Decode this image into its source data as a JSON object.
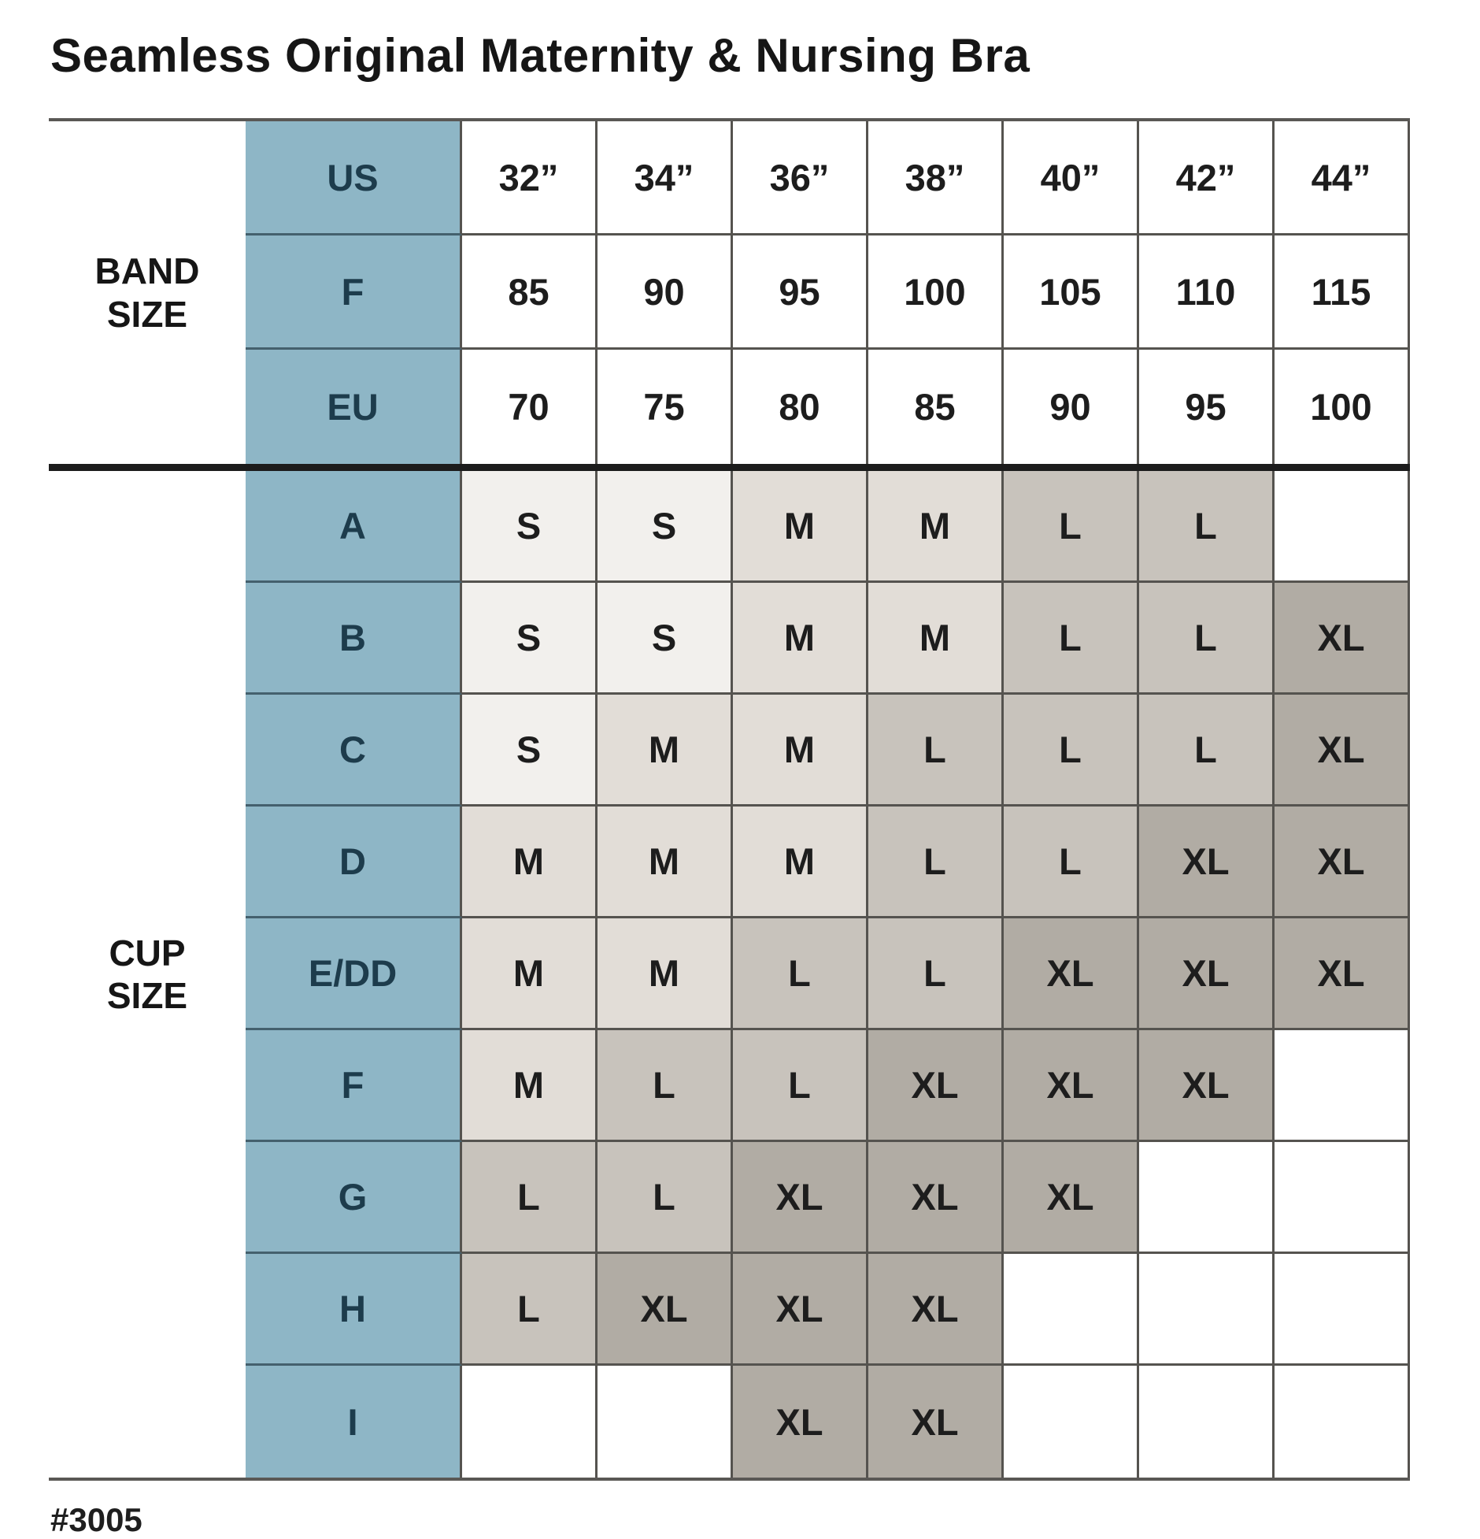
{
  "chart_data": {
    "type": "table",
    "title": "Seamless Original Maternity & Nursing Bra",
    "band_section": {
      "label": "BAND\nSIZE",
      "rows": [
        {
          "label": "US",
          "values": [
            "32”",
            "34”",
            "36”",
            "38”",
            "40”",
            "42”",
            "44”"
          ]
        },
        {
          "label": "F",
          "values": [
            "85",
            "90",
            "95",
            "100",
            "105",
            "110",
            "115"
          ]
        },
        {
          "label": "EU",
          "values": [
            "70",
            "75",
            "80",
            "85",
            "90",
            "95",
            "100"
          ]
        }
      ]
    },
    "cup_section": {
      "label": "CUP\nSIZE",
      "rows": [
        {
          "label": "A",
          "values": [
            "S",
            "S",
            "M",
            "M",
            "L",
            "L",
            ""
          ]
        },
        {
          "label": "B",
          "values": [
            "S",
            "S",
            "M",
            "M",
            "L",
            "L",
            "XL"
          ]
        },
        {
          "label": "C",
          "values": [
            "S",
            "M",
            "M",
            "L",
            "L",
            "L",
            "XL"
          ]
        },
        {
          "label": "D",
          "values": [
            "M",
            "M",
            "M",
            "L",
            "L",
            "XL",
            "XL"
          ]
        },
        {
          "label": "E/DD",
          "values": [
            "M",
            "M",
            "L",
            "L",
            "XL",
            "XL",
            "XL"
          ]
        },
        {
          "label": "F",
          "values": [
            "M",
            "L",
            "L",
            "XL",
            "XL",
            "XL",
            ""
          ]
        },
        {
          "label": "G",
          "values": [
            "L",
            "L",
            "XL",
            "XL",
            "XL",
            "",
            ""
          ]
        },
        {
          "label": "H",
          "values": [
            "L",
            "XL",
            "XL",
            "XL",
            "",
            "",
            ""
          ]
        },
        {
          "label": "I",
          "values": [
            "",
            "",
            "XL",
            "XL",
            "",
            "",
            ""
          ]
        }
      ]
    },
    "size_scale": [
      "S",
      "M",
      "L",
      "XL"
    ]
  },
  "style_number": "#3005",
  "colors": {
    "header_blue": "#8eb6c6",
    "header_blue_text": "#1d3c4c",
    "size_s_bg": "#f2f0ed",
    "size_m_bg": "#e2ddd7",
    "size_l_bg": "#c8c3bc",
    "size_xl_bg": "#b1aca4",
    "grid_line": "#55534f",
    "section_divider": "#1c1c1c"
  }
}
